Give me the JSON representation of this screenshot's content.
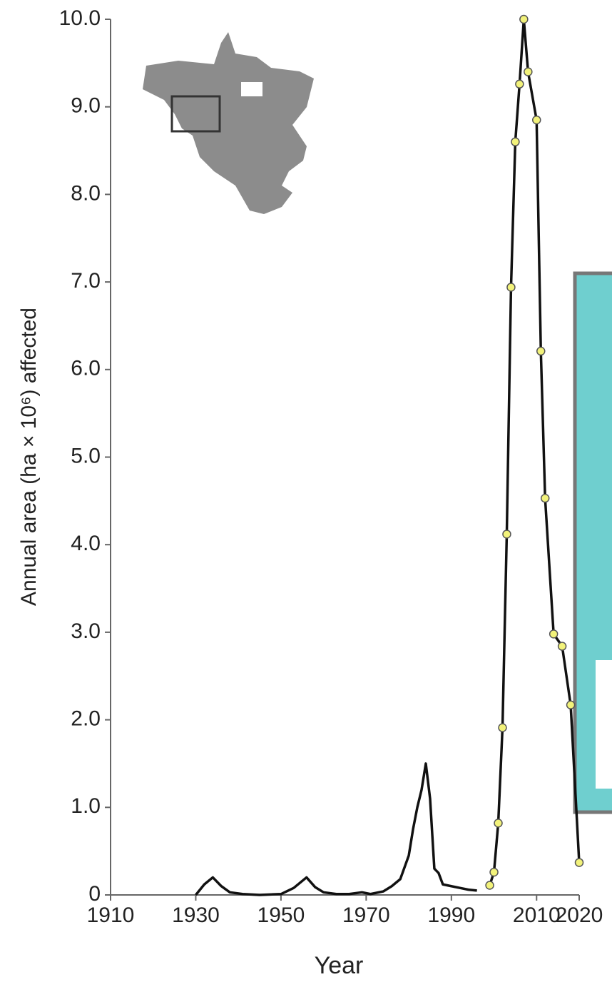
{
  "chart_data": {
    "type": "line",
    "x_label": "Year",
    "y_label": "Annual area (ha × 10⁶) affected",
    "xlim": [
      1910,
      2020
    ],
    "xticks": [
      1910,
      1930,
      1950,
      1970,
      1990,
      2010,
      2020
    ],
    "ylim": [
      0,
      10
    ],
    "yticks": [
      0,
      {
        "value": 1,
        "label": "1.0"
      },
      {
        "value": 2,
        "label": "2.0"
      },
      {
        "value": 3,
        "label": "3.0"
      },
      {
        "value": 4,
        "label": "4.0"
      },
      {
        "value": 5,
        "label": "5.0"
      },
      {
        "value": 6,
        "label": "6.0"
      },
      {
        "value": 7,
        "label": "7.0"
      },
      {
        "value": 8,
        "label": "8.0"
      },
      {
        "value": 9,
        "label": "9.0"
      },
      {
        "value": 10,
        "label": "10.0"
      }
    ],
    "series": [
      {
        "color": "#111111",
        "markers": false,
        "x": [
          1930,
          1932,
          1934,
          1936,
          1938,
          1941,
          1945,
          1950,
          1953,
          1956,
          1958,
          1960,
          1963,
          1966,
          1969,
          1971,
          1974,
          1976,
          1978,
          1980,
          1981,
          1982,
          1983,
          1984,
          1985,
          1986,
          1987,
          1988,
          1990,
          1992,
          1994,
          1996
        ],
        "values": [
          0,
          0.12,
          0.2,
          0.1,
          0.03,
          0.01,
          0,
          0.01,
          0.08,
          0.2,
          0.09,
          0.03,
          0.01,
          0.01,
          0.03,
          0.01,
          0.04,
          0.1,
          0.18,
          0.45,
          0.75,
          1.0,
          1.2,
          1.5,
          1.1,
          0.3,
          0.25,
          0.12,
          0.1,
          0.08,
          0.06,
          0.05
        ]
      },
      {
        "color": "#111111",
        "markers": true,
        "marker_color": "#f2f27a",
        "x": [
          1999,
          2000,
          2001,
          2002,
          2003,
          2004,
          2005,
          2006,
          2007,
          2008,
          2010,
          2011,
          2012,
          2014,
          2016,
          2018,
          2020
        ],
        "values": [
          0.11,
          0.26,
          0.82,
          1.91,
          4.12,
          6.94,
          8.6,
          9.26,
          10.0,
          9.4,
          8.85,
          6.21,
          4.53,
          2.98,
          2.84,
          2.17,
          0.37
        ]
      }
    ]
  }
}
